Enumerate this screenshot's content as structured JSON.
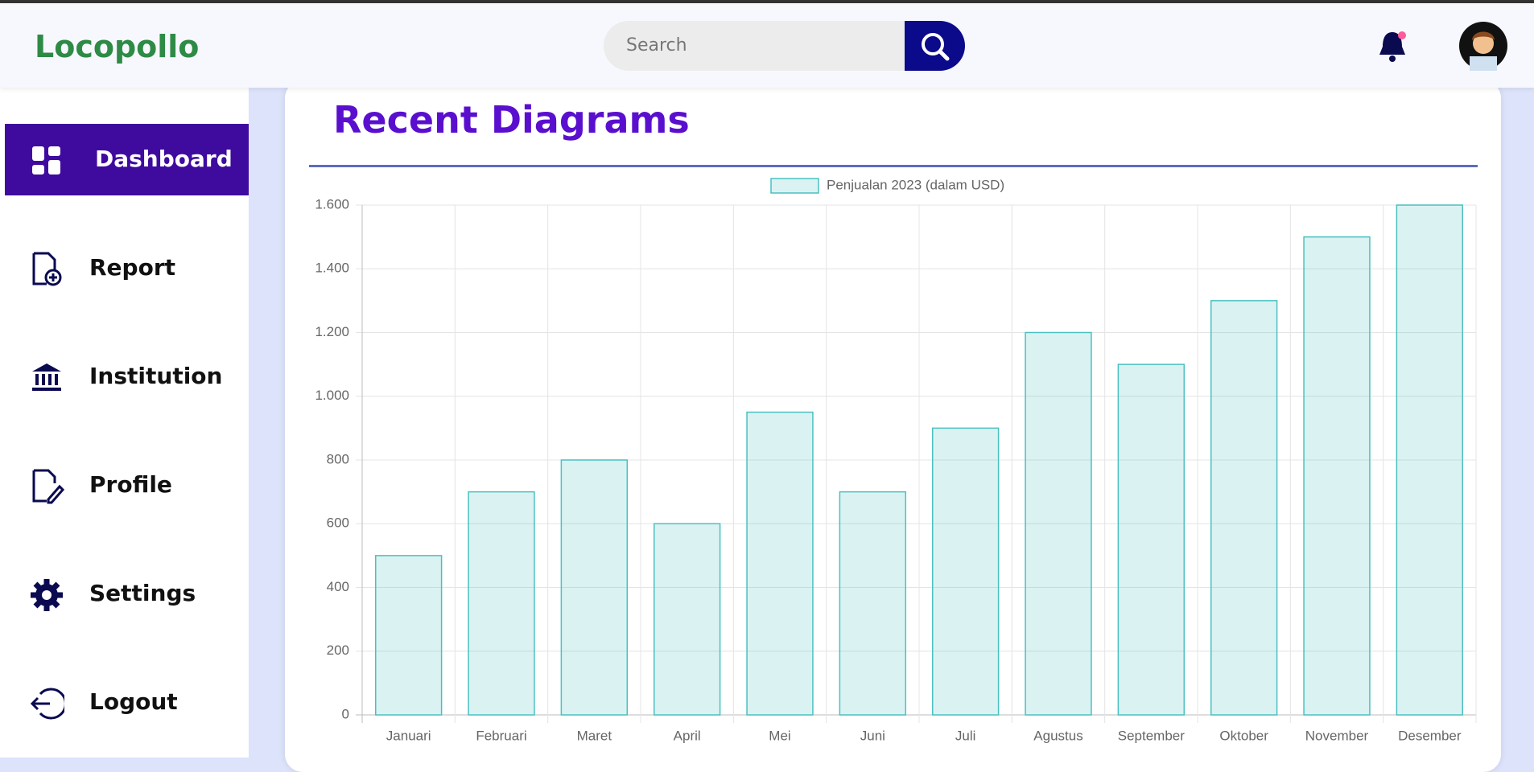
{
  "header": {
    "logo": "Locopollo",
    "search_placeholder": "Search"
  },
  "sidebar": {
    "items": [
      "Dashboard",
      "Report",
      "Institution",
      "Profile",
      "Settings",
      "Logout"
    ]
  },
  "card": {
    "title": "Recent Diagrams"
  },
  "chart_data": {
    "type": "bar",
    "categories": [
      "Januari",
      "Februari",
      "Maret",
      "April",
      "Mei",
      "Juni",
      "Juli",
      "Agustus",
      "September",
      "Oktober",
      "November",
      "Desember"
    ],
    "series": [
      {
        "name": "Penjualan 2023 (dalam USD)",
        "color": "#4bc0c0",
        "values": [
          500,
          700,
          800,
          600,
          950,
          700,
          900,
          1200,
          1100,
          1300,
          1500,
          1600
        ]
      }
    ],
    "ylim": [
      0,
      1600
    ],
    "yticks": [
      0,
      200,
      400,
      600,
      800,
      {
        "value": 1000,
        "label": "1.000"
      },
      {
        "value": 1200,
        "label": "1.200"
      },
      {
        "value": 1400,
        "label": "1.400"
      },
      {
        "value": 1600,
        "label": "1.600"
      }
    ],
    "grid": true,
    "legend": "top"
  }
}
